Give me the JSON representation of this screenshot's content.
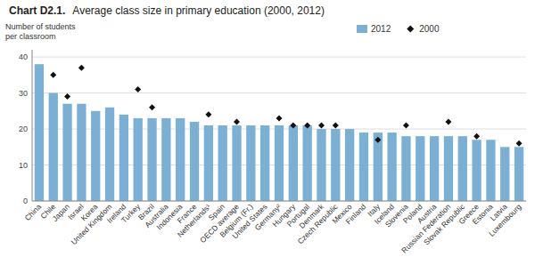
{
  "chart_data": {
    "type": "bar",
    "title": "Chart D2.1.",
    "subtitle": "Average class size in primary education (2000, 2012)",
    "ylabel": [
      "Number of students",
      "per classroom"
    ],
    "categories": [
      "China",
      "Chile",
      "Japan",
      "Israel",
      "Korea",
      "United Kingdom",
      "Ireland",
      "Turkey",
      "Brazil",
      "Australia",
      "Indonesia",
      "France",
      "Netherlands¹",
      "Spain",
      "OECD average",
      "Belgium (Fr.)",
      "United States",
      "Germany²",
      "Hungary",
      "Portugal",
      "Denmark",
      "Czech Republic",
      "Mexico",
      "Finland",
      "Italy",
      "Iceland",
      "Slovenia",
      "Poland",
      "Austria",
      "Russian Federation",
      "Slovak Republic",
      "Greece",
      "Estonia",
      "Latvia",
      "Luxembourg"
    ],
    "series": [
      {
        "name": "2012",
        "type": "bar",
        "color": "#7BAFD4",
        "values": [
          38,
          30,
          27,
          27,
          25,
          26,
          24,
          23,
          23,
          23,
          23,
          22,
          21,
          21,
          21,
          21,
          21,
          21,
          21,
          21,
          20,
          20,
          20,
          19,
          19,
          19,
          18,
          18,
          18,
          18,
          18,
          17,
          17,
          15,
          15
        ]
      },
      {
        "name": "2000",
        "type": "scatter",
        "marker": "diamond",
        "color": "#111111",
        "values": [
          null,
          35,
          29,
          37,
          null,
          null,
          null,
          31,
          26,
          null,
          null,
          null,
          24,
          null,
          22,
          null,
          null,
          23,
          21,
          21,
          21,
          21,
          null,
          null,
          17,
          null,
          21,
          null,
          null,
          22,
          null,
          18,
          null,
          null,
          16
        ]
      }
    ],
    "ylim": [
      0,
      42
    ],
    "yticks": [
      0,
      10,
      20,
      30,
      40
    ],
    "grid": true,
    "legend": "top"
  }
}
